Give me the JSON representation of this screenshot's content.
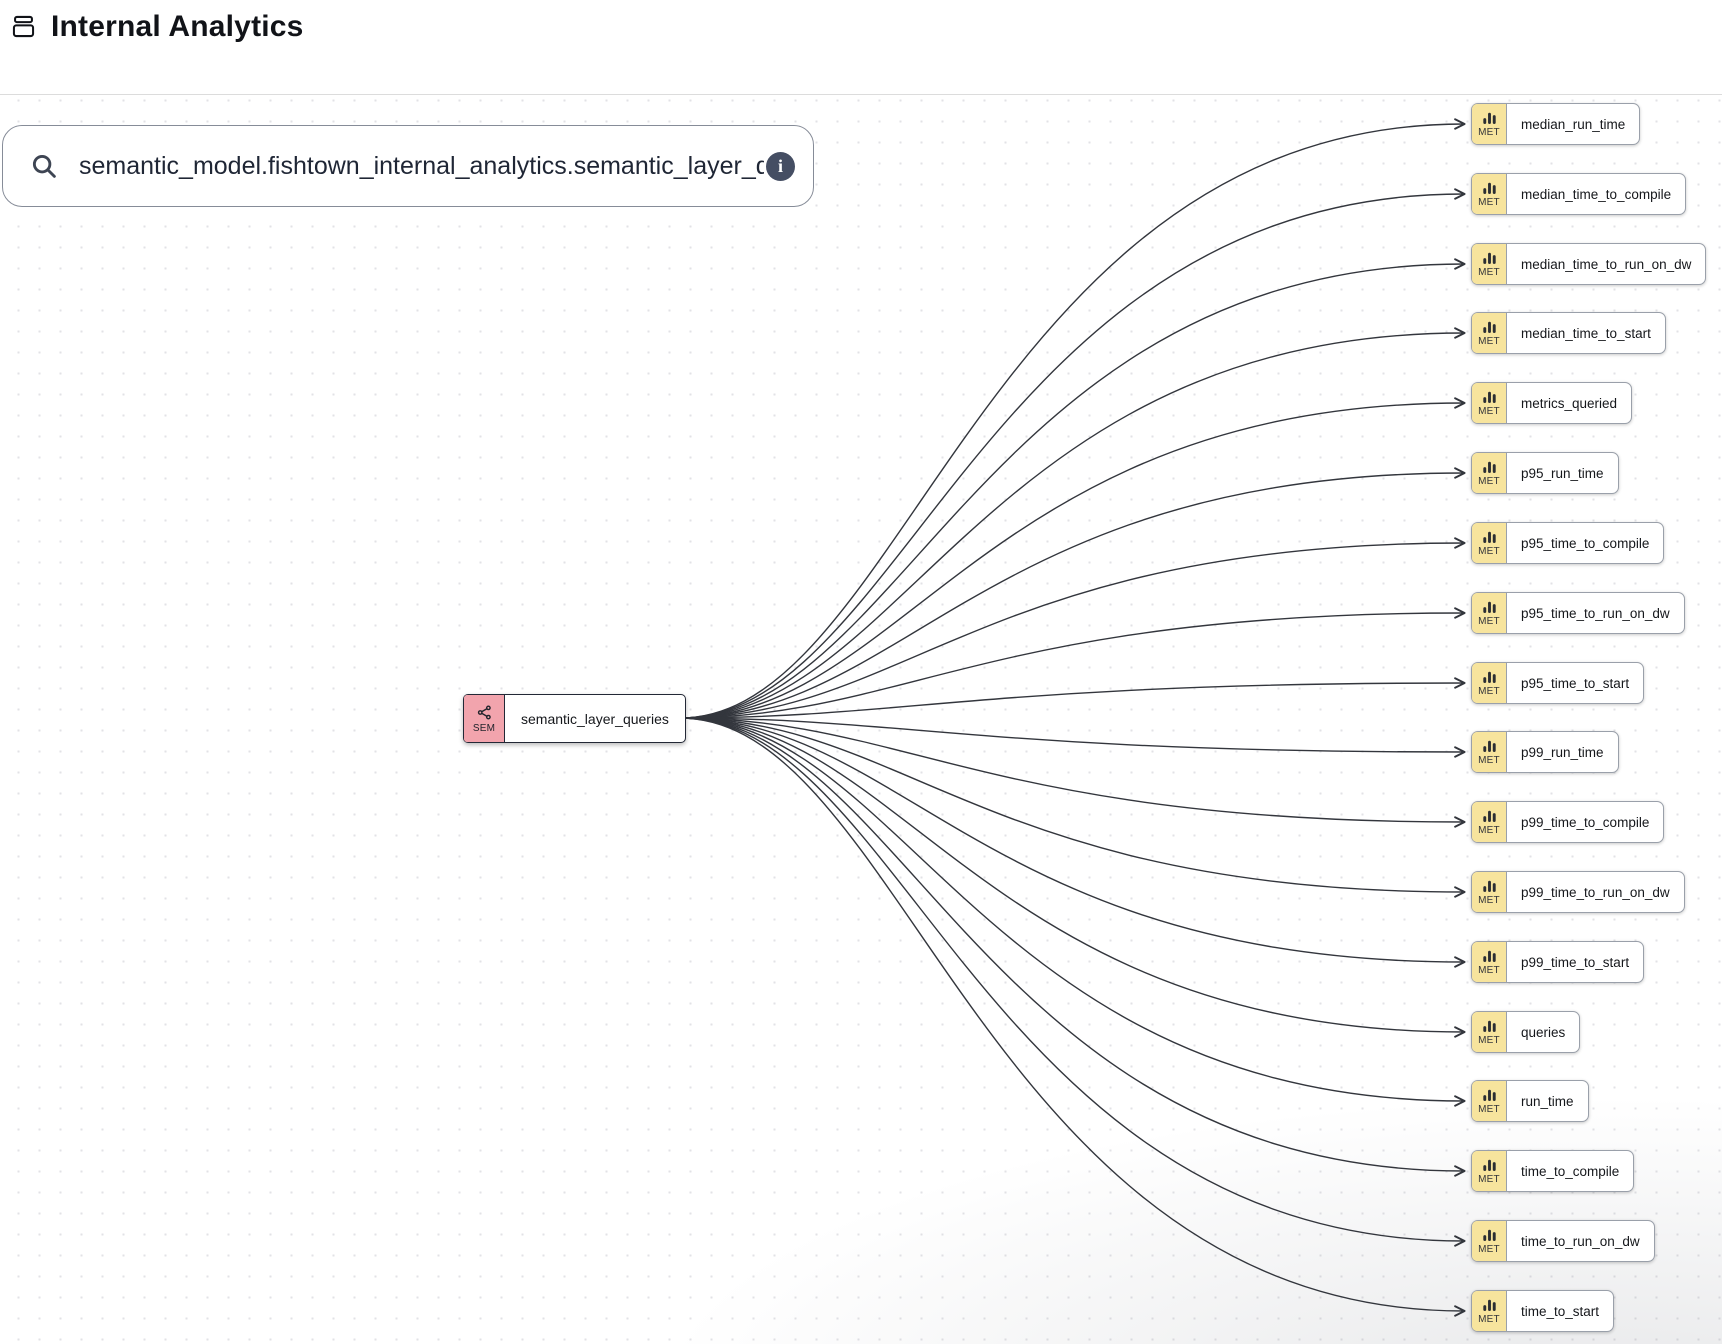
{
  "header": {
    "title": "Internal Analytics"
  },
  "search": {
    "value": "semantic_model.fishtown_internal_analytics.semantic_layer_queries",
    "info_glyph": "i"
  },
  "graph": {
    "source": {
      "type_label": "SEM",
      "label": "semantic_layer_queries"
    },
    "metric_type_label": "MET",
    "metrics": [
      "median_run_time",
      "median_time_to_compile",
      "median_time_to_run_on_dw",
      "median_time_to_start",
      "metrics_queried",
      "p95_run_time",
      "p95_time_to_compile",
      "p95_time_to_run_on_dw",
      "p95_time_to_start",
      "p99_run_time",
      "p99_time_to_compile",
      "p99_time_to_run_on_dw",
      "p99_time_to_start",
      "queries",
      "run_time",
      "time_to_compile",
      "time_to_run_on_dw",
      "time_to_start"
    ]
  },
  "colors": {
    "sem_badge": "#F2A4AD",
    "met_badge": "#F7E49D",
    "edge": "#33363D",
    "metric_node_border": "#9AA0AA",
    "source_node_border": "#232836",
    "info_icon_bg": "#454E63"
  }
}
